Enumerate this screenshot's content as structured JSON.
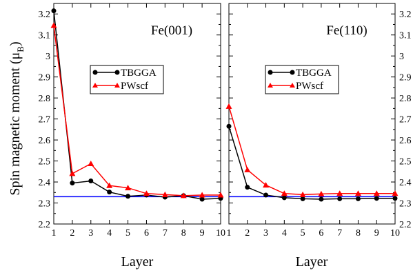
{
  "chart_data": [
    {
      "type": "line",
      "title": "Fe(001)",
      "xlabel": "Layer",
      "ylabel": "Spin magnetic moment (μB)",
      "xlim": [
        1,
        10
      ],
      "ylim": [
        2.2,
        3.25
      ],
      "x": [
        1,
        2,
        3,
        4,
        5,
        6,
        7,
        8,
        9,
        10
      ],
      "series": [
        {
          "name": "TBGGA",
          "color": "#000000",
          "marker": "circle",
          "values": [
            3.215,
            2.395,
            2.405,
            2.352,
            2.332,
            2.338,
            2.328,
            2.335,
            2.318,
            2.322
          ]
        },
        {
          "name": "PWscf",
          "color": "#ff0000",
          "marker": "triangle",
          "values": [
            3.145,
            2.44,
            2.487,
            2.383,
            2.372,
            2.345,
            2.34,
            2.335,
            2.338,
            2.338
          ]
        }
      ],
      "reference_line": {
        "value": 2.33,
        "color": "#0000ff"
      },
      "ticks_x": [
        "1",
        "2",
        "3",
        "4",
        "5",
        "6",
        "7",
        "8",
        "9",
        "10"
      ],
      "ticks_y": [
        "2.2",
        "2.3",
        "2.4",
        "2.5",
        "2.6",
        "2.7",
        "2.8",
        "2.9",
        "3",
        "3.1",
        "3.2"
      ],
      "legend_position": "upper-middle"
    },
    {
      "type": "line",
      "title": "Fe(110)",
      "xlabel": "Layer",
      "ylabel": "",
      "xlim": [
        1,
        10
      ],
      "ylim": [
        2.2,
        3.25
      ],
      "x": [
        1,
        2,
        3,
        4,
        5,
        6,
        7,
        8,
        9,
        10
      ],
      "series": [
        {
          "name": "TBGGA",
          "color": "#000000",
          "marker": "circle",
          "values": [
            2.665,
            2.375,
            2.338,
            2.325,
            2.32,
            2.318,
            2.32,
            2.32,
            2.322,
            2.322
          ]
        },
        {
          "name": "PWscf",
          "color": "#ff0000",
          "marker": "triangle",
          "values": [
            2.76,
            2.458,
            2.385,
            2.345,
            2.34,
            2.343,
            2.345,
            2.345,
            2.345,
            2.345
          ]
        }
      ],
      "reference_line": {
        "value": 2.33,
        "color": "#0000ff"
      },
      "ticks_x": [
        "1",
        "2",
        "3",
        "4",
        "5",
        "6",
        "7",
        "8",
        "9",
        "10"
      ],
      "ticks_y": [
        "2.2",
        "2.3",
        "2.4",
        "2.5",
        "2.6",
        "2.7",
        "2.8",
        "2.9",
        "3",
        "3.1",
        "3.2"
      ],
      "legend_position": "upper-middle"
    }
  ],
  "labels": {
    "ylabel_main": "Spin magnetic moment (μ",
    "ylabel_sub": "B",
    "ylabel_close": ")",
    "panel1_title": "Fe(001)",
    "panel2_title": "Fe(110)",
    "xlabel_left": "Layer",
    "xlabel_right": "Layer",
    "legend1_a": "TBGGA",
    "legend1_b": "PWscf",
    "legend2_a": "TBGGA",
    "legend2_b": "PWscf"
  }
}
